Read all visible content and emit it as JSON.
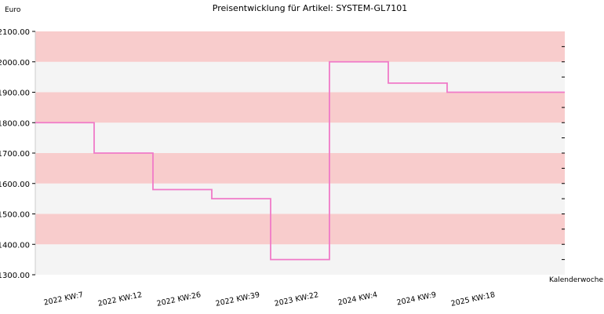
{
  "chart_data": {
    "type": "line",
    "title": "Preisentwicklung für Artikel: SYSTEM-GL7101",
    "ylabel": "Euro",
    "xlabel": "Kalenderwoche",
    "ylim": [
      1300,
      2100
    ],
    "yticks": [
      "1300.00",
      "1400.00",
      "1500.00",
      "1600.00",
      "1700.00",
      "1800.00",
      "1900.00",
      "2000.00",
      "2100.00"
    ],
    "categories": [
      "2022 KW:7",
      "2022 KW:12",
      "2022 KW:26",
      "2022 KW:39",
      "2023 KW:22",
      "2024 KW:4",
      "2024 KW:9",
      "2025 KW:18"
    ],
    "series": [
      {
        "values": [
          1800,
          1700,
          1580,
          1550,
          1350,
          2000,
          1930,
          1900
        ]
      }
    ],
    "colors": {
      "line": "#f07ac8",
      "band_dark": "#f8cccc",
      "band_light": "#f4f4f4",
      "axis": "#000000"
    }
  }
}
